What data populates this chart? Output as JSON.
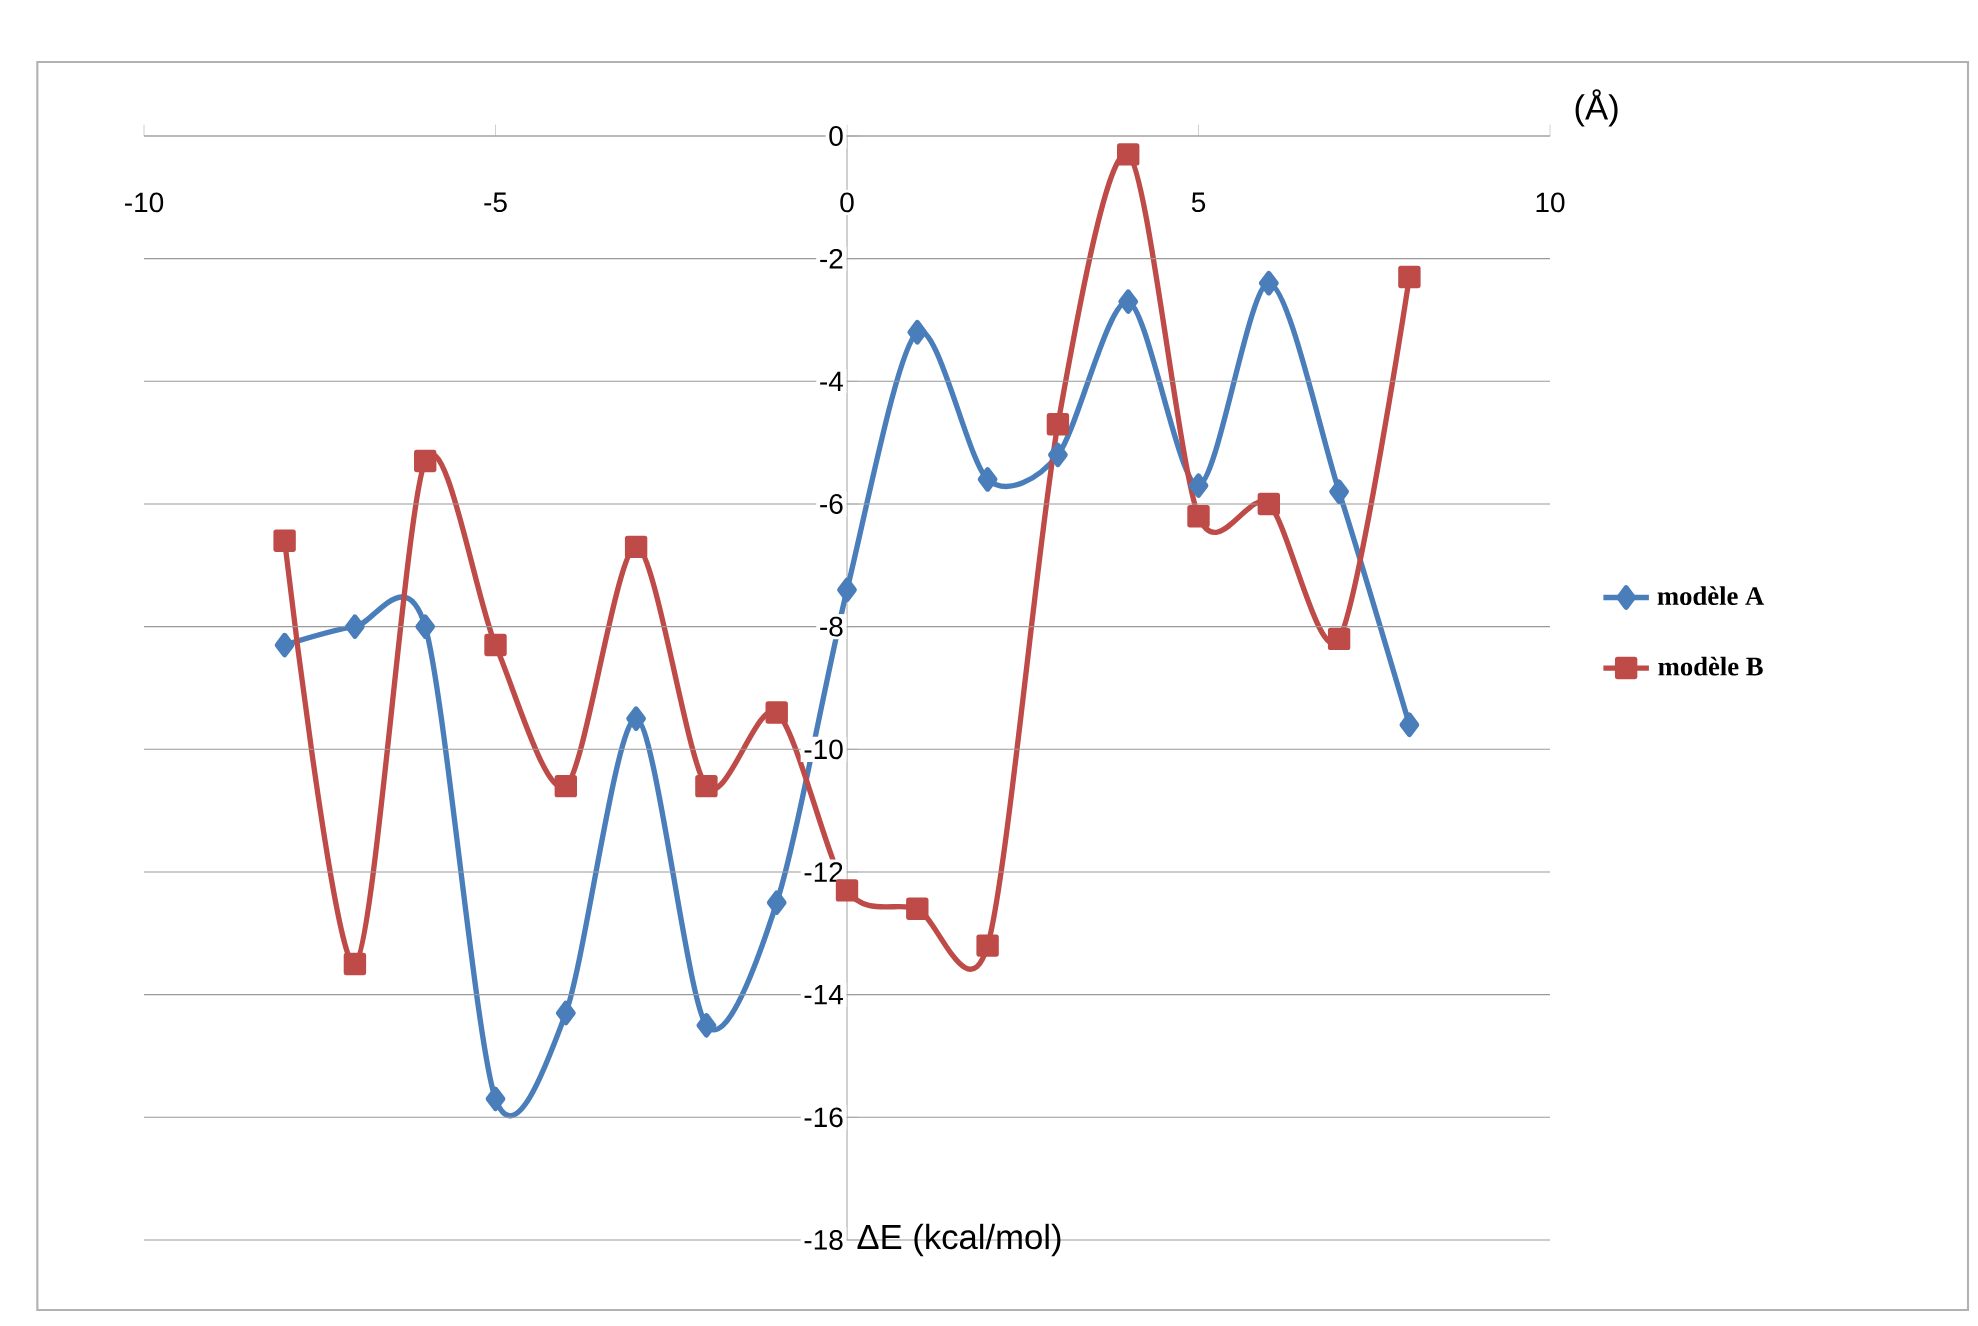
{
  "chart_data": {
    "type": "line",
    "xlabel": "(Å)",
    "ylabel": "ΔE (kcal/mol)",
    "xlim": [
      -10,
      10
    ],
    "ylim": [
      -18,
      0
    ],
    "xticks": [
      -10,
      -5,
      0,
      5,
      10
    ],
    "yticks": [
      0,
      -2,
      -4,
      -6,
      -8,
      -10,
      -12,
      -14,
      -16,
      -18
    ],
    "grid": "y",
    "legend": "right",
    "series": [
      {
        "name": "modèle A",
        "color": "#4a7ebb",
        "marker": "diamond",
        "x": [
          -8,
          -7,
          -6,
          -5,
          -4,
          -3,
          -2,
          -1,
          0,
          1,
          2,
          3,
          4,
          5,
          6,
          7,
          8
        ],
        "values": [
          -8.3,
          -8.0,
          -8.0,
          -15.7,
          -14.3,
          -9.5,
          -14.5,
          -12.5,
          -7.4,
          -3.2,
          -5.6,
          -5.2,
          -2.7,
          -5.7,
          -2.4,
          -5.8,
          -9.6
        ]
      },
      {
        "name": "modèle B",
        "color": "#be4b48",
        "marker": "square",
        "x": [
          -8,
          -7,
          -6,
          -5,
          -4,
          -3,
          -2,
          -1,
          0,
          1,
          2,
          3,
          4,
          5,
          6,
          7,
          8
        ],
        "values": [
          -6.6,
          -13.5,
          -5.3,
          -8.3,
          -10.6,
          -6.7,
          -10.6,
          -9.4,
          -12.3,
          -12.6,
          -13.2,
          -4.7,
          -0.3,
          -6.2,
          -6.0,
          -8.2,
          -2.3
        ]
      }
    ]
  }
}
